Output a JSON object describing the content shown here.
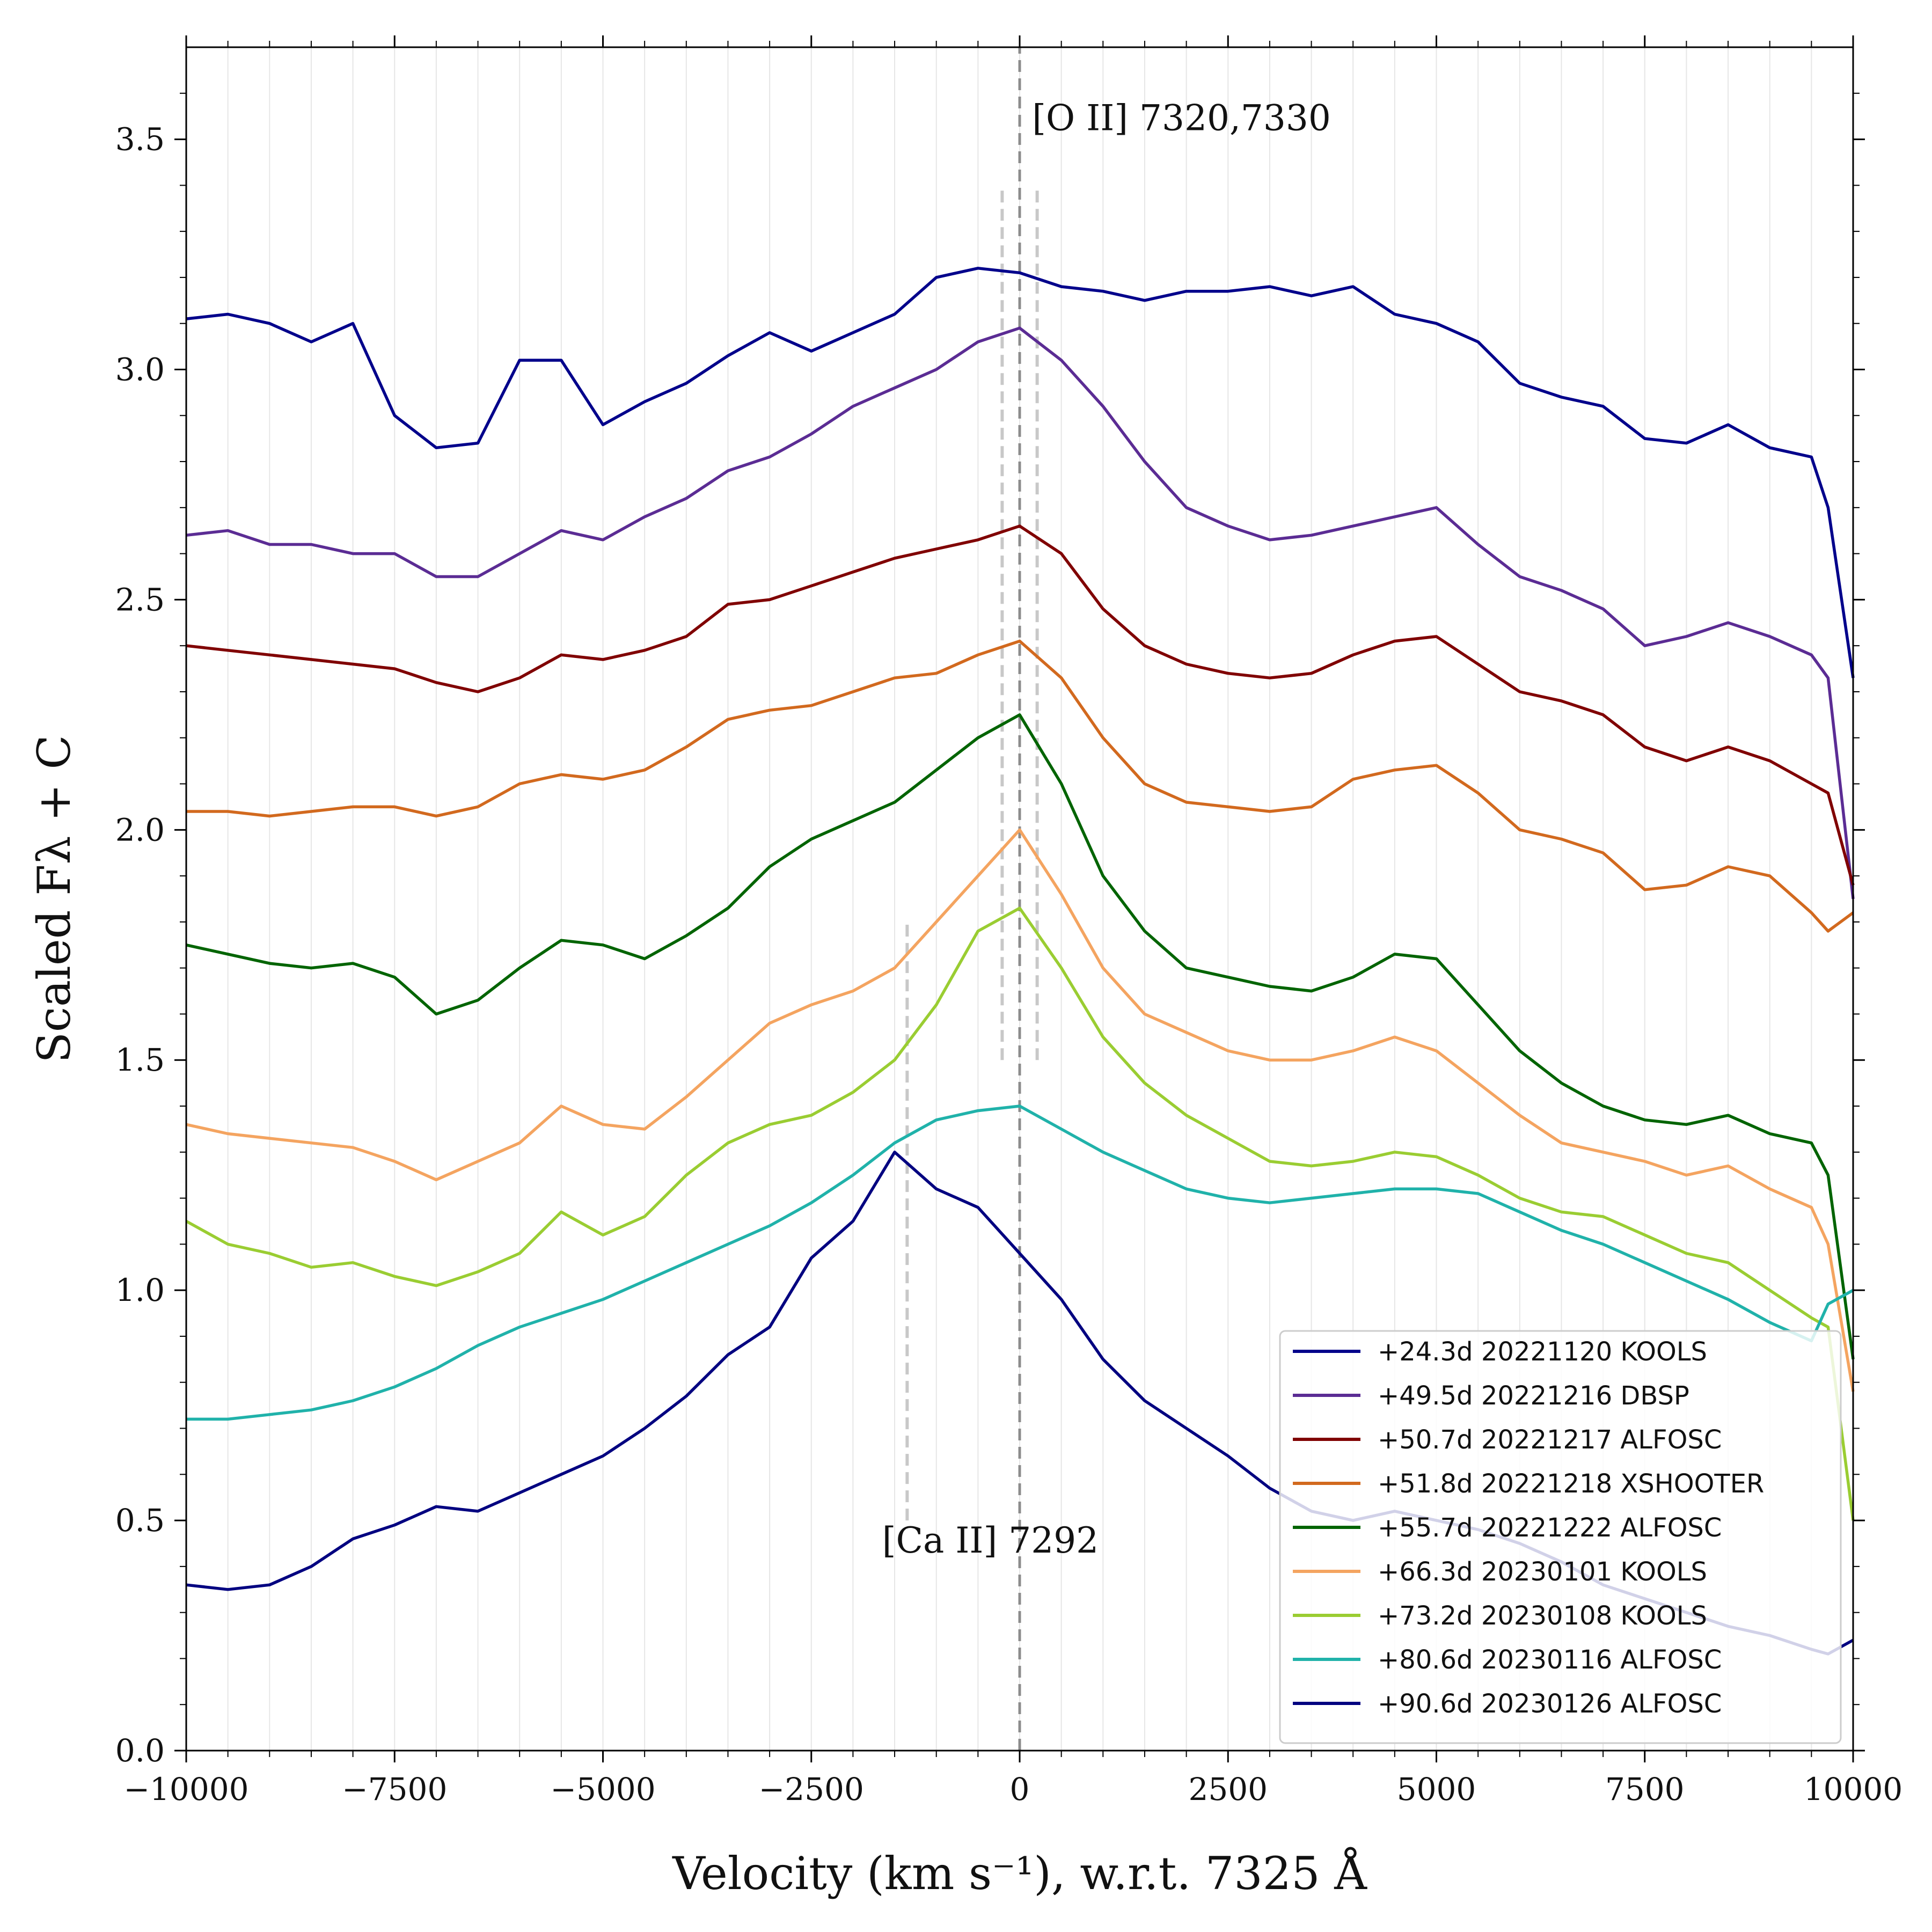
{
  "chart_data": {
    "type": "line",
    "xlabel": "Velocity (km s⁻¹), w.r.t. 7325 Å",
    "ylabel": "Scaled Fλ + C",
    "xlim": [
      -10000,
      10000
    ],
    "ylim": [
      0.0,
      3.7
    ],
    "grid": "vertical minor lines",
    "legend_position": "lower-right",
    "x_ticks": [
      -10000,
      -7500,
      -5000,
      -2500,
      0,
      2500,
      5000,
      7500,
      10000
    ],
    "x_tick_labels": [
      "−10000",
      "−7500",
      "−5000",
      "−2500",
      "0",
      "2500",
      "5000",
      "7500",
      "10000"
    ],
    "y_ticks": [
      0.0,
      0.5,
      1.0,
      1.5,
      2.0,
      2.5,
      3.0,
      3.5
    ],
    "y_tick_labels": [
      "0.0",
      "0.5",
      "1.0",
      "1.5",
      "2.0",
      "2.5",
      "3.0",
      "3.5"
    ],
    "annotations": [
      {
        "text": "[O II] 7320,7330",
        "x": 150,
        "y": 3.52
      },
      {
        "text": "[Ca II] 7292",
        "x": -1650,
        "y": 0.43
      }
    ],
    "reference_lines": [
      {
        "x": 0,
        "ymin": 0.0,
        "ymax": 3.7,
        "style": "dashed",
        "color": "#8c8c8c"
      },
      {
        "x": -210,
        "ymin": 1.5,
        "ymax": 3.4,
        "style": "dashed",
        "color": "#c8c8c8"
      },
      {
        "x": 210,
        "ymin": 1.5,
        "ymax": 3.4,
        "style": "dashed",
        "color": "#c8c8c8"
      },
      {
        "x": -1350,
        "ymin": 0.5,
        "ymax": 1.8,
        "style": "dashed",
        "color": "#c8c8c8"
      }
    ],
    "series": [
      {
        "name": "+24.3d 20221120 KOOLS",
        "color": "#00008b",
        "x": [
          -10000,
          -9500,
          -9000,
          -8500,
          -8000,
          -7500,
          -7000,
          -6500,
          -6000,
          -5500,
          -5000,
          -4500,
          -4000,
          -3500,
          -3000,
          -2500,
          -2000,
          -1500,
          -1000,
          -500,
          0,
          500,
          1000,
          1500,
          2000,
          2500,
          3000,
          3500,
          4000,
          4500,
          5000,
          5500,
          6000,
          6500,
          7000,
          7500,
          8000,
          8500,
          9000,
          9500,
          9700,
          10000
        ],
        "y": [
          3.11,
          3.12,
          3.1,
          3.06,
          3.1,
          2.9,
          2.83,
          2.84,
          3.02,
          3.02,
          2.88,
          2.93,
          2.97,
          3.03,
          3.08,
          3.04,
          3.08,
          3.12,
          3.2,
          3.22,
          3.21,
          3.18,
          3.17,
          3.15,
          3.17,
          3.17,
          3.18,
          3.16,
          3.18,
          3.12,
          3.1,
          3.06,
          2.97,
          2.94,
          2.92,
          2.85,
          2.84,
          2.88,
          2.83,
          2.81,
          2.7,
          2.33
        ]
      },
      {
        "name": "+49.5d 20221216 DBSP",
        "color": "#5b2c94",
        "x": [
          -10000,
          -9500,
          -9000,
          -8500,
          -8000,
          -7500,
          -7000,
          -6500,
          -6000,
          -5500,
          -5000,
          -4500,
          -4000,
          -3500,
          -3000,
          -2500,
          -2000,
          -1500,
          -1000,
          -500,
          0,
          500,
          1000,
          1500,
          2000,
          2500,
          3000,
          3500,
          4000,
          4500,
          5000,
          5500,
          6000,
          6500,
          7000,
          7500,
          8000,
          8500,
          9000,
          9500,
          9700,
          10000
        ],
        "y": [
          2.64,
          2.65,
          2.62,
          2.62,
          2.6,
          2.6,
          2.55,
          2.55,
          2.6,
          2.65,
          2.63,
          2.68,
          2.72,
          2.78,
          2.81,
          2.86,
          2.92,
          2.96,
          3.0,
          3.06,
          3.09,
          3.02,
          2.92,
          2.8,
          2.7,
          2.66,
          2.63,
          2.64,
          2.66,
          2.68,
          2.7,
          2.62,
          2.55,
          2.52,
          2.48,
          2.4,
          2.42,
          2.45,
          2.42,
          2.38,
          2.33,
          1.85
        ]
      },
      {
        "name": "+50.7d 20221217 ALFOSC",
        "color": "#800000",
        "x": [
          -10000,
          -9500,
          -9000,
          -8500,
          -8000,
          -7500,
          -7000,
          -6500,
          -6000,
          -5500,
          -5000,
          -4500,
          -4000,
          -3500,
          -3000,
          -2500,
          -2000,
          -1500,
          -1000,
          -500,
          0,
          500,
          1000,
          1500,
          2000,
          2500,
          3000,
          3500,
          4000,
          4500,
          5000,
          5500,
          6000,
          6500,
          7000,
          7500,
          8000,
          8500,
          9000,
          9500,
          9700,
          10000
        ],
        "y": [
          2.4,
          2.39,
          2.38,
          2.37,
          2.36,
          2.35,
          2.32,
          2.3,
          2.33,
          2.38,
          2.37,
          2.39,
          2.42,
          2.49,
          2.5,
          2.53,
          2.56,
          2.59,
          2.61,
          2.63,
          2.66,
          2.6,
          2.48,
          2.4,
          2.36,
          2.34,
          2.33,
          2.34,
          2.38,
          2.41,
          2.42,
          2.36,
          2.3,
          2.28,
          2.25,
          2.18,
          2.15,
          2.18,
          2.15,
          2.1,
          2.08,
          1.88
        ]
      },
      {
        "name": "+51.8d 20221218 XSHOOTER",
        "color": "#d2691e",
        "x": [
          -10000,
          -9500,
          -9000,
          -8500,
          -8000,
          -7500,
          -7000,
          -6500,
          -6000,
          -5500,
          -5000,
          -4500,
          -4000,
          -3500,
          -3000,
          -2500,
          -2000,
          -1500,
          -1000,
          -500,
          0,
          500,
          1000,
          1500,
          2000,
          2500,
          3000,
          3500,
          4000,
          4500,
          5000,
          5500,
          6000,
          6500,
          7000,
          7500,
          8000,
          8500,
          9000,
          9500,
          9700,
          10000
        ],
        "y": [
          2.04,
          2.04,
          2.03,
          2.04,
          2.05,
          2.05,
          2.03,
          2.05,
          2.1,
          2.12,
          2.11,
          2.13,
          2.18,
          2.24,
          2.26,
          2.27,
          2.3,
          2.33,
          2.34,
          2.38,
          2.41,
          2.33,
          2.2,
          2.1,
          2.06,
          2.05,
          2.04,
          2.05,
          2.11,
          2.13,
          2.14,
          2.08,
          2.0,
          1.98,
          1.95,
          1.87,
          1.88,
          1.92,
          1.9,
          1.82,
          1.78,
          1.82
        ]
      },
      {
        "name": "+55.7d 20221222 ALFOSC",
        "color": "#006400",
        "x": [
          -10000,
          -9500,
          -9000,
          -8500,
          -8000,
          -7500,
          -7000,
          -6500,
          -6000,
          -5500,
          -5000,
          -4500,
          -4000,
          -3500,
          -3000,
          -2500,
          -2000,
          -1500,
          -1000,
          -500,
          0,
          500,
          1000,
          1500,
          2000,
          2500,
          3000,
          3500,
          4000,
          4500,
          5000,
          5500,
          6000,
          6500,
          7000,
          7500,
          8000,
          8500,
          9000,
          9500,
          9700,
          10000
        ],
        "y": [
          1.75,
          1.73,
          1.71,
          1.7,
          1.71,
          1.68,
          1.6,
          1.63,
          1.7,
          1.76,
          1.75,
          1.72,
          1.77,
          1.83,
          1.92,
          1.98,
          2.02,
          2.06,
          2.13,
          2.2,
          2.25,
          2.1,
          1.9,
          1.78,
          1.7,
          1.68,
          1.66,
          1.65,
          1.68,
          1.73,
          1.72,
          1.62,
          1.52,
          1.45,
          1.4,
          1.37,
          1.36,
          1.38,
          1.34,
          1.32,
          1.25,
          0.85
        ]
      },
      {
        "name": "+66.3d 20230101 KOOLS",
        "color": "#f4a460",
        "x": [
          -10000,
          -9500,
          -9000,
          -8500,
          -8000,
          -7500,
          -7000,
          -6500,
          -6000,
          -5500,
          -5000,
          -4500,
          -4000,
          -3500,
          -3000,
          -2500,
          -2000,
          -1500,
          -1000,
          -500,
          0,
          500,
          1000,
          1500,
          2000,
          2500,
          3000,
          3500,
          4000,
          4500,
          5000,
          5500,
          6000,
          6500,
          7000,
          7500,
          8000,
          8500,
          9000,
          9500,
          9700,
          10000
        ],
        "y": [
          1.36,
          1.34,
          1.33,
          1.32,
          1.31,
          1.28,
          1.24,
          1.28,
          1.32,
          1.4,
          1.36,
          1.35,
          1.42,
          1.5,
          1.58,
          1.62,
          1.65,
          1.7,
          1.8,
          1.9,
          2.0,
          1.86,
          1.7,
          1.6,
          1.56,
          1.52,
          1.5,
          1.5,
          1.52,
          1.55,
          1.52,
          1.45,
          1.38,
          1.32,
          1.3,
          1.28,
          1.25,
          1.27,
          1.22,
          1.18,
          1.1,
          0.78
        ]
      },
      {
        "name": "+73.2d 20230108 KOOLS",
        "color": "#9acd32",
        "x": [
          -10000,
          -9500,
          -9000,
          -8500,
          -8000,
          -7500,
          -7000,
          -6500,
          -6000,
          -5500,
          -5000,
          -4500,
          -4000,
          -3500,
          -3000,
          -2500,
          -2000,
          -1500,
          -1000,
          -500,
          0,
          500,
          1000,
          1500,
          2000,
          2500,
          3000,
          3500,
          4000,
          4500,
          5000,
          5500,
          6000,
          6500,
          7000,
          7500,
          8000,
          8500,
          9000,
          9500,
          9700,
          10000
        ],
        "y": [
          1.15,
          1.1,
          1.08,
          1.05,
          1.06,
          1.03,
          1.01,
          1.04,
          1.08,
          1.17,
          1.12,
          1.16,
          1.25,
          1.32,
          1.36,
          1.38,
          1.43,
          1.5,
          1.62,
          1.78,
          1.83,
          1.7,
          1.55,
          1.45,
          1.38,
          1.33,
          1.28,
          1.27,
          1.28,
          1.3,
          1.29,
          1.25,
          1.2,
          1.17,
          1.16,
          1.12,
          1.08,
          1.06,
          1.0,
          0.94,
          0.92,
          0.5
        ]
      },
      {
        "name": "+80.6d 20230116 ALFOSC",
        "color": "#20b2aa",
        "x": [
          -10000,
          -9500,
          -9000,
          -8500,
          -8000,
          -7500,
          -7000,
          -6500,
          -6000,
          -5500,
          -5000,
          -4500,
          -4000,
          -3500,
          -3000,
          -2500,
          -2000,
          -1500,
          -1000,
          -500,
          0,
          500,
          1000,
          1500,
          2000,
          2500,
          3000,
          3500,
          4000,
          4500,
          5000,
          5500,
          6000,
          6500,
          7000,
          7500,
          8000,
          8500,
          9000,
          9500,
          9700,
          10000
        ],
        "y": [
          0.72,
          0.72,
          0.73,
          0.74,
          0.76,
          0.79,
          0.83,
          0.88,
          0.92,
          0.95,
          0.98,
          1.02,
          1.06,
          1.1,
          1.14,
          1.19,
          1.25,
          1.32,
          1.37,
          1.39,
          1.4,
          1.35,
          1.3,
          1.26,
          1.22,
          1.2,
          1.19,
          1.2,
          1.21,
          1.22,
          1.22,
          1.21,
          1.17,
          1.13,
          1.1,
          1.06,
          1.02,
          0.98,
          0.93,
          0.89,
          0.97,
          1.0
        ]
      },
      {
        "name": "+90.6d 20230126 ALFOSC",
        "color": "#000080",
        "x": [
          -10000,
          -9500,
          -9000,
          -8500,
          -8000,
          -7500,
          -7000,
          -6500,
          -6000,
          -5500,
          -5000,
          -4500,
          -4000,
          -3500,
          -3000,
          -2500,
          -2000,
          -1500,
          -1000,
          -500,
          0,
          500,
          1000,
          1500,
          2000,
          2500,
          3000,
          3500,
          4000,
          4500,
          5000,
          5500,
          6000,
          6500,
          7000,
          7500,
          8000,
          8500,
          9000,
          9500,
          9700,
          10000
        ],
        "y": [
          0.36,
          0.35,
          0.36,
          0.4,
          0.46,
          0.49,
          0.53,
          0.52,
          0.56,
          0.6,
          0.64,
          0.7,
          0.77,
          0.86,
          0.92,
          1.07,
          1.15,
          1.3,
          1.22,
          1.18,
          1.08,
          0.98,
          0.85,
          0.76,
          0.7,
          0.64,
          0.57,
          0.52,
          0.5,
          0.52,
          0.5,
          0.48,
          0.45,
          0.41,
          0.36,
          0.33,
          0.3,
          0.27,
          0.25,
          0.22,
          0.21,
          0.24
        ]
      }
    ]
  }
}
